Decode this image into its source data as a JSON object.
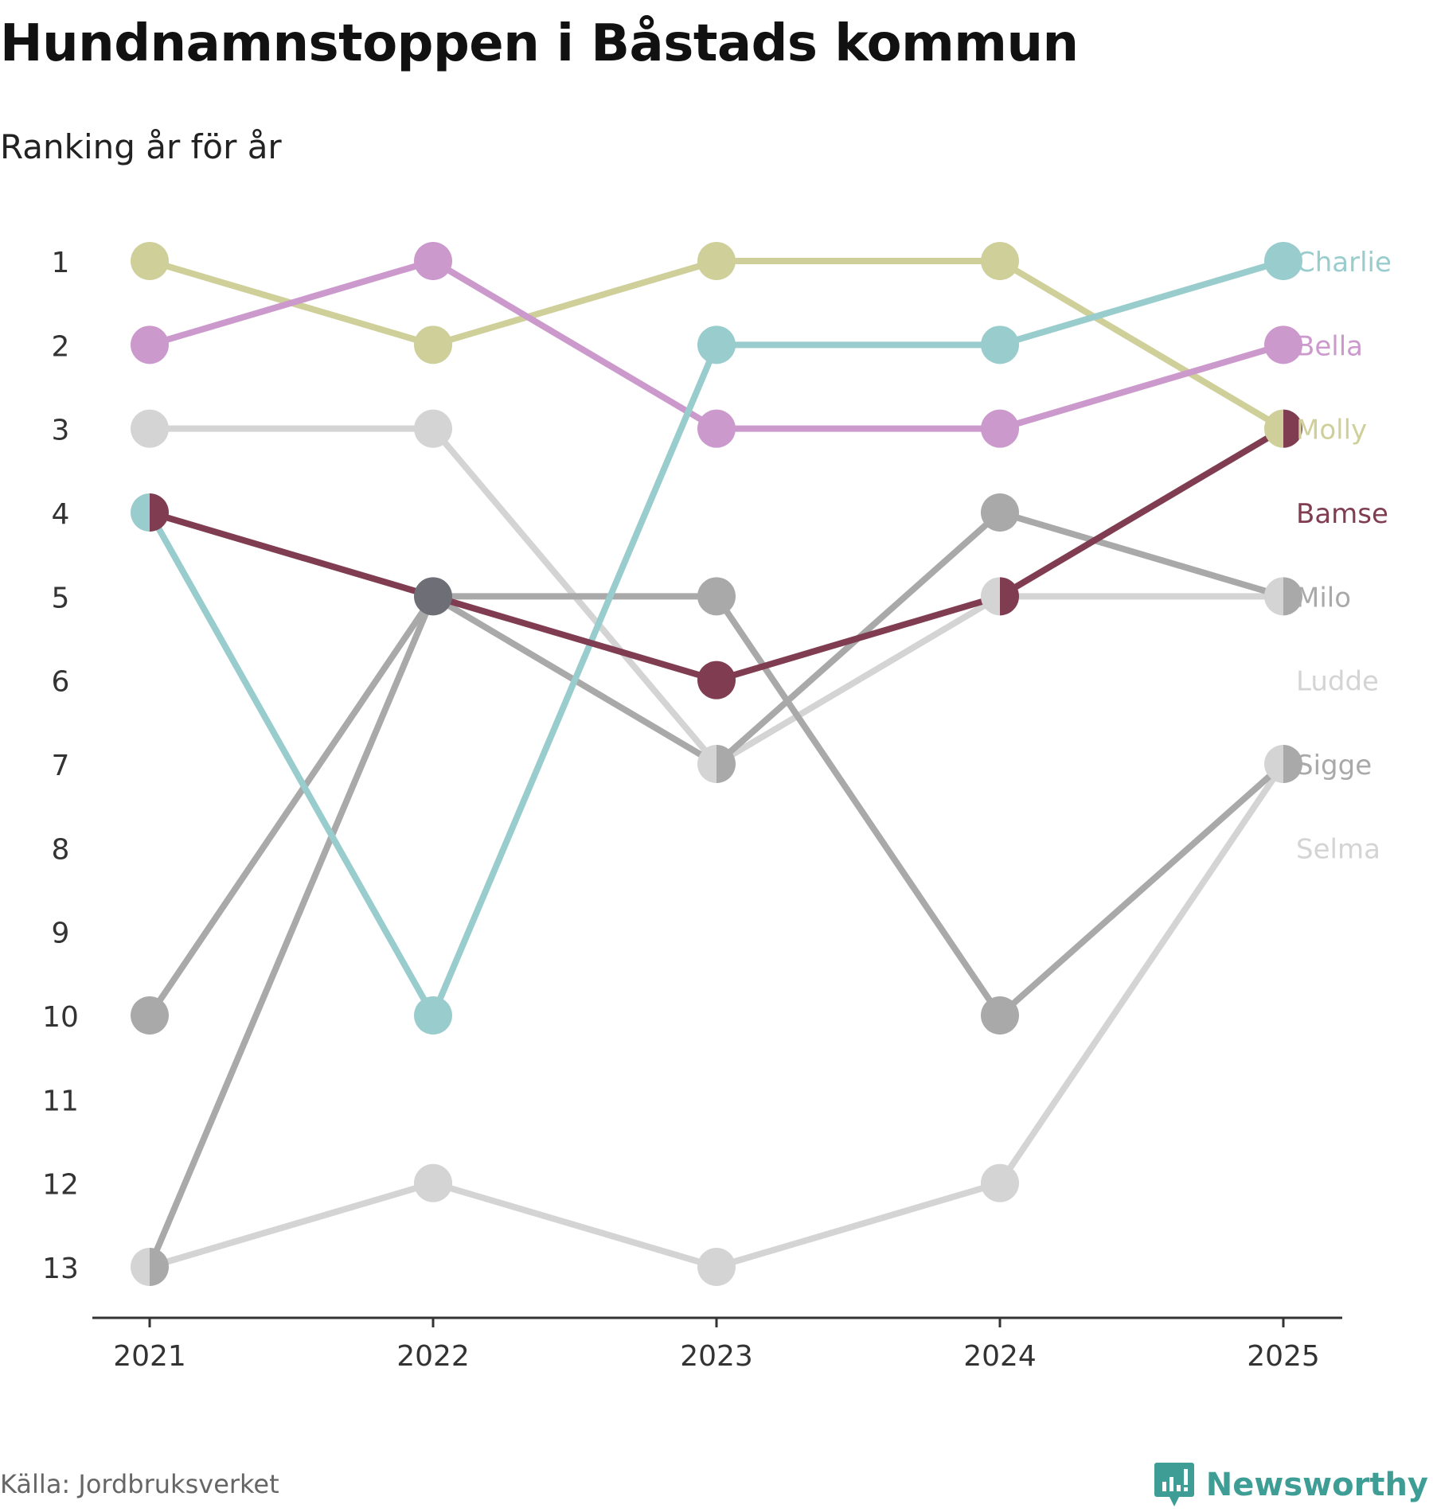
{
  "header": {
    "title": "Hundnamnstoppen i Båstads kommun",
    "subtitle": "Ranking år för år"
  },
  "footer": {
    "source": "Källa: Jordbruksverket",
    "brand": "Newsworthy"
  },
  "colors": {
    "axis": "#333333",
    "tick_text": "#333333",
    "brand": "#3e9e96"
  },
  "chart_data": {
    "type": "line",
    "title": "Hundnamnstoppen i Båstads kommun",
    "subtitle": "Ranking år för år",
    "xlabel": "",
    "ylabel": "",
    "x": [
      "2021",
      "2022",
      "2023",
      "2024",
      "2025"
    ],
    "y_ticks": [
      "1",
      "2",
      "3",
      "4",
      "5",
      "6",
      "7",
      "8",
      "9",
      "10",
      "11",
      "12",
      "13"
    ],
    "ylim": [
      1,
      13
    ],
    "y_inverted": true,
    "grid": false,
    "legend": "right end labels",
    "series": [
      {
        "name": "Ludde",
        "color": "#d4d4d4",
        "label_rank": 6,
        "values": [
          3,
          3,
          7,
          5,
          5
        ]
      },
      {
        "name": "Selma",
        "color": "#d4d4d4",
        "label_rank": 8,
        "values": [
          13,
          12,
          13,
          12,
          7
        ]
      },
      {
        "name": "Milo",
        "color": "#a9a9a9",
        "label_rank": 5,
        "values": [
          10,
          5,
          7,
          4,
          5
        ]
      },
      {
        "name": "Sigge",
        "color": "#a9a9a9",
        "label_rank": 7,
        "values": [
          13,
          5,
          5,
          10,
          7
        ]
      },
      {
        "name": "Molly",
        "color": "#cfcf9a",
        "label_rank": 3,
        "values": [
          1,
          2,
          1,
          1,
          3
        ]
      },
      {
        "name": "Bella",
        "color": "#cc99cc",
        "label_rank": 2,
        "values": [
          2,
          1,
          3,
          3,
          2
        ]
      },
      {
        "name": "Charlie",
        "color": "#99cccc",
        "label_rank": 1,
        "values": [
          4,
          10,
          2,
          2,
          1
        ]
      },
      {
        "name": "Bamse",
        "color": "#803d52",
        "label_rank": 4,
        "values": [
          4,
          5,
          6,
          5,
          3
        ]
      }
    ]
  }
}
